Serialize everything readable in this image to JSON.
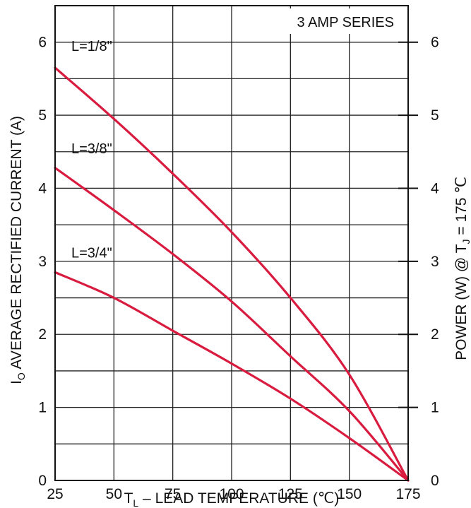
{
  "chart_data": {
    "type": "line",
    "title": "3 AMP SERIES",
    "xlabel_main": "T",
    "xlabel_sub": "L",
    "xlabel_rest": " – LEAD TEMPERATURE (℃)",
    "ylabel_main": "I",
    "ylabel_sub": "O",
    "ylabel_rest": " AVERAGE RECTIFIED CURRENT (A)",
    "y2label_pre": "POWER (W) @ T",
    "y2label_sub": "J",
    "y2label_post": " = 175 ℃",
    "xlim": [
      25,
      175
    ],
    "ylim": [
      0,
      6.5
    ],
    "y2lim": [
      0,
      6.5
    ],
    "x_ticks": [
      "25",
      "50",
      "75",
      "100",
      "125",
      "150",
      "175"
    ],
    "y_ticks": [
      "0",
      "1",
      "2",
      "3",
      "4",
      "5",
      "6"
    ],
    "y2_ticks": [
      "0",
      "1",
      "2",
      "3",
      "4",
      "5",
      "6"
    ],
    "grid": true,
    "series": [
      {
        "name": "L=1/8\"",
        "color": "#d81b3f",
        "x": [
          25,
          50,
          75,
          100,
          125,
          150,
          175
        ],
        "y": [
          5.65,
          4.95,
          4.2,
          3.4,
          2.5,
          1.45,
          0
        ]
      },
      {
        "name": "L=3/8\"",
        "color": "#d81b3f",
        "x": [
          25,
          50,
          75,
          100,
          125,
          150,
          175
        ],
        "y": [
          4.28,
          3.7,
          3.1,
          2.45,
          1.7,
          0.95,
          0
        ]
      },
      {
        "name": "L=3/4\"",
        "color": "#d81b3f",
        "x": [
          25,
          50,
          75,
          100,
          125,
          150,
          175
        ],
        "y": [
          2.85,
          2.5,
          2.05,
          1.6,
          1.12,
          0.58,
          0
        ]
      }
    ]
  }
}
